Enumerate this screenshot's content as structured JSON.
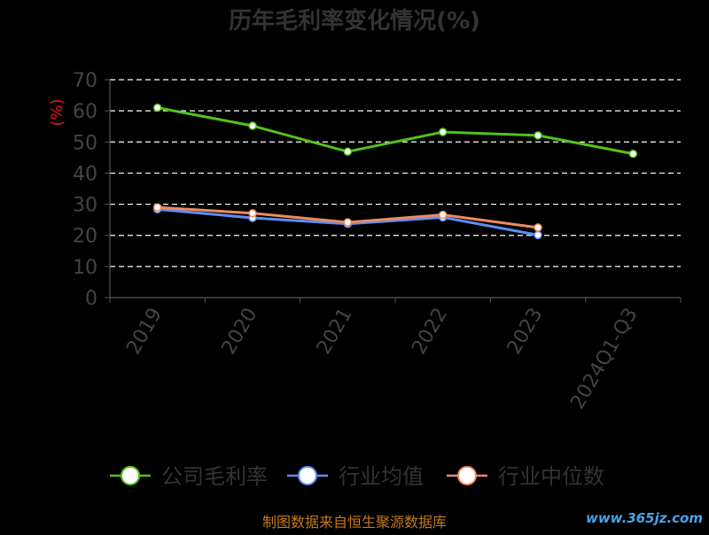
{
  "chart_data": {
    "type": "line",
    "title": "历年毛利率变化情况(%)",
    "ylabel": "(%)",
    "xlabel": "",
    "categories": [
      "2019",
      "2020",
      "2021",
      "2022",
      "2023",
      "2024Q1-Q3"
    ],
    "ylim": [
      0,
      70
    ],
    "yticks": [
      "0",
      "10",
      "20",
      "30",
      "40",
      "50",
      "60",
      "70"
    ],
    "grid": true,
    "legend_position": "bottom",
    "series": [
      {
        "name": "公司毛利率",
        "color": "#52c41a",
        "values": [
          61.0,
          55.2,
          46.9,
          53.2,
          52.1,
          46.2
        ]
      },
      {
        "name": "行业均值",
        "color": "#5b8ff9",
        "values": [
          28.4,
          25.6,
          23.7,
          25.8,
          20.1,
          null
        ]
      },
      {
        "name": "行业中位数",
        "color": "#f08a5d",
        "values": [
          29.0,
          27.1,
          24.2,
          26.6,
          22.5,
          null
        ]
      }
    ]
  },
  "footer": {
    "source": "制图数据来自恒生聚源数据库",
    "watermark": "www.365jz.com"
  },
  "colors": {
    "background": "#000000",
    "title": "#333333",
    "axis_text": "#444444",
    "ylabel": "#e0141e",
    "grid": "#ffffff",
    "axis_line": "#555555",
    "legend_text": "#333333",
    "footer_text": "#c47a1e",
    "watermark": "#4aa3e8"
  }
}
